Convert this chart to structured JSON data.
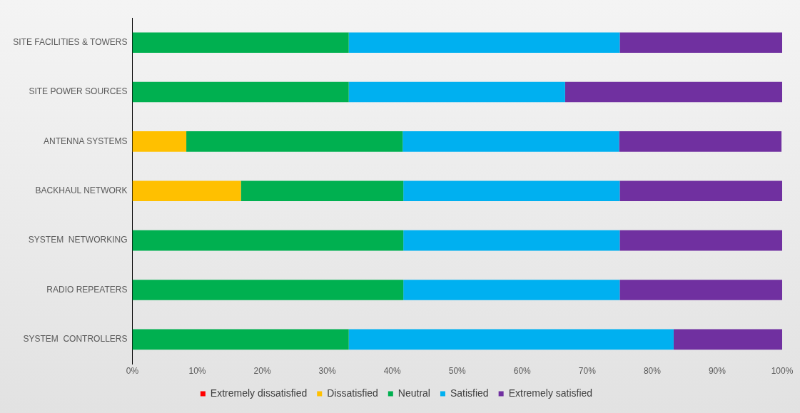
{
  "chart_data": {
    "type": "bar",
    "orientation": "horizontal",
    "stacked": true,
    "categories": [
      "SITE FACILITIES & TOWERS",
      "SITE POWER SOURCES",
      "ANTENNA SYSTEMS",
      "BACKHAUL NETWORK",
      "SYSTEM  NETWORKING",
      "RADIO REPEATERS",
      "SYSTEM  CONTROLLERS"
    ],
    "series": [
      {
        "name": "Extremely dissatisfied",
        "color": "#ff0000",
        "values": [
          0,
          0,
          0,
          0,
          0,
          0,
          0
        ]
      },
      {
        "name": "Dissatisfied",
        "color": "#ffc000",
        "values": [
          0,
          0,
          8.3,
          16.7,
          0,
          0,
          0
        ]
      },
      {
        "name": "Neutral",
        "color": "#00b050",
        "values": [
          33.3,
          33.3,
          33.3,
          25,
          41.7,
          41.7,
          33.3
        ]
      },
      {
        "name": "Satisfied",
        "color": "#00b0f0",
        "values": [
          41.7,
          33.3,
          33.3,
          33.3,
          33.3,
          33.3,
          50
        ]
      },
      {
        "name": "Extremely satisfied",
        "color": "#7030a0",
        "values": [
          25,
          33.4,
          25,
          25,
          25,
          25,
          16.7
        ]
      }
    ],
    "xlim": [
      0,
      100
    ],
    "xticks": [
      {
        "value": 0,
        "label": "0%"
      },
      {
        "value": 10,
        "label": "10%"
      },
      {
        "value": 20,
        "label": "20%"
      },
      {
        "value": 30,
        "label": "30%"
      },
      {
        "value": 40,
        "label": "40%"
      },
      {
        "value": 50,
        "label": "50%"
      },
      {
        "value": 60,
        "label": "60%"
      },
      {
        "value": 70,
        "label": "70%"
      },
      {
        "value": 80,
        "label": "80%"
      },
      {
        "value": 90,
        "label": "90%"
      },
      {
        "value": 100,
        "label": "100%"
      }
    ],
    "grid": false,
    "legend": "bottom"
  }
}
